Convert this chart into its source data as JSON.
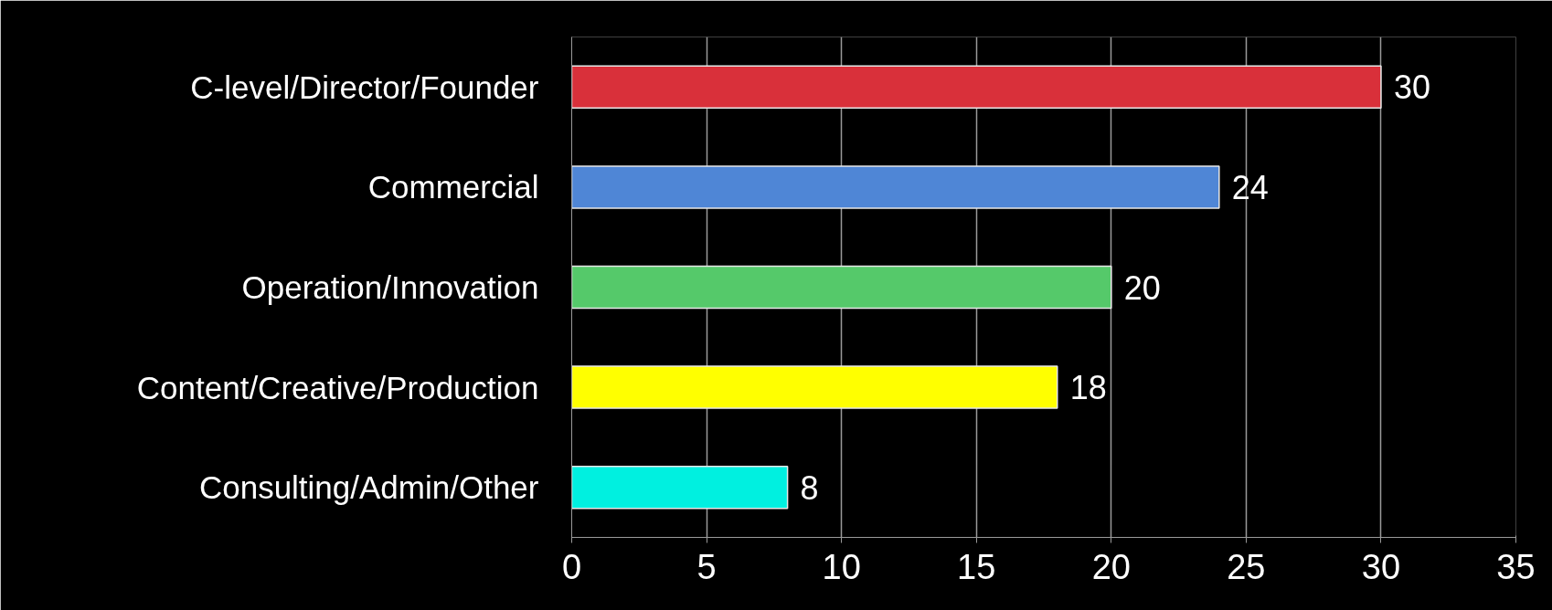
{
  "chart_data": {
    "type": "bar",
    "orientation": "horizontal",
    "categories": [
      "C-level/Director/Founder",
      "Commercial",
      "Operation/Innovation",
      "Content/Creative/Production",
      "Consulting/Admin/Other"
    ],
    "values": [
      30,
      24,
      20,
      18,
      8
    ],
    "colors": [
      "#d9303a",
      "#4f86d6",
      "#55c96a",
      "#ffff00",
      "#00f0e0"
    ],
    "xlim": [
      0,
      35
    ],
    "xticks": [
      0,
      5,
      10,
      15,
      20,
      25,
      30,
      35
    ],
    "grid": "x",
    "data_labels": true
  }
}
